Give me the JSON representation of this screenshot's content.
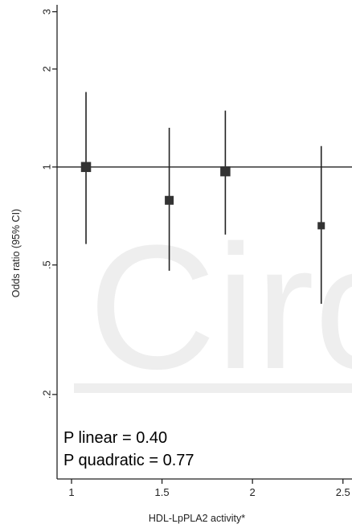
{
  "chart_data": {
    "type": "scatter",
    "xlabel": "HDL-LpPLA2 activity*",
    "ylabel": "Odds ratio (95% CI)",
    "y_scale": "log",
    "xlim": [
      0.92,
      2.55
    ],
    "ylim": [
      0.11,
      3.15
    ],
    "x_ticks": [
      {
        "value": 1,
        "label": "1"
      },
      {
        "value": 1.5,
        "label": "1.5"
      },
      {
        "value": 2,
        "label": "2"
      },
      {
        "value": 2.5,
        "label": "2.5"
      }
    ],
    "y_ticks": [
      {
        "value": 0.2,
        "label": ".2"
      },
      {
        "value": 0.5,
        "label": ".5"
      },
      {
        "value": 1,
        "label": "1"
      },
      {
        "value": 2,
        "label": "2"
      },
      {
        "value": 3,
        "label": "3"
      }
    ],
    "reference_line": 1,
    "points": [
      {
        "x": 1.08,
        "y": 1.0,
        "lower": 0.58,
        "upper": 1.7,
        "marker_size": "large"
      },
      {
        "x": 1.54,
        "y": 0.79,
        "lower": 0.48,
        "upper": 1.32,
        "marker_size": "medium"
      },
      {
        "x": 1.85,
        "y": 0.97,
        "lower": 0.62,
        "upper": 1.49,
        "marker_size": "large"
      },
      {
        "x": 2.38,
        "y": 0.66,
        "lower": 0.38,
        "upper": 1.16,
        "marker_size": "small"
      }
    ],
    "annotations": [
      "P linear = 0.40",
      "P quadratic = 0.77"
    ],
    "grid": false,
    "legend": "none",
    "colors": {
      "marker": "#333333",
      "line": "#222222",
      "watermark": "#eeeeee"
    },
    "watermark": "Circ"
  }
}
